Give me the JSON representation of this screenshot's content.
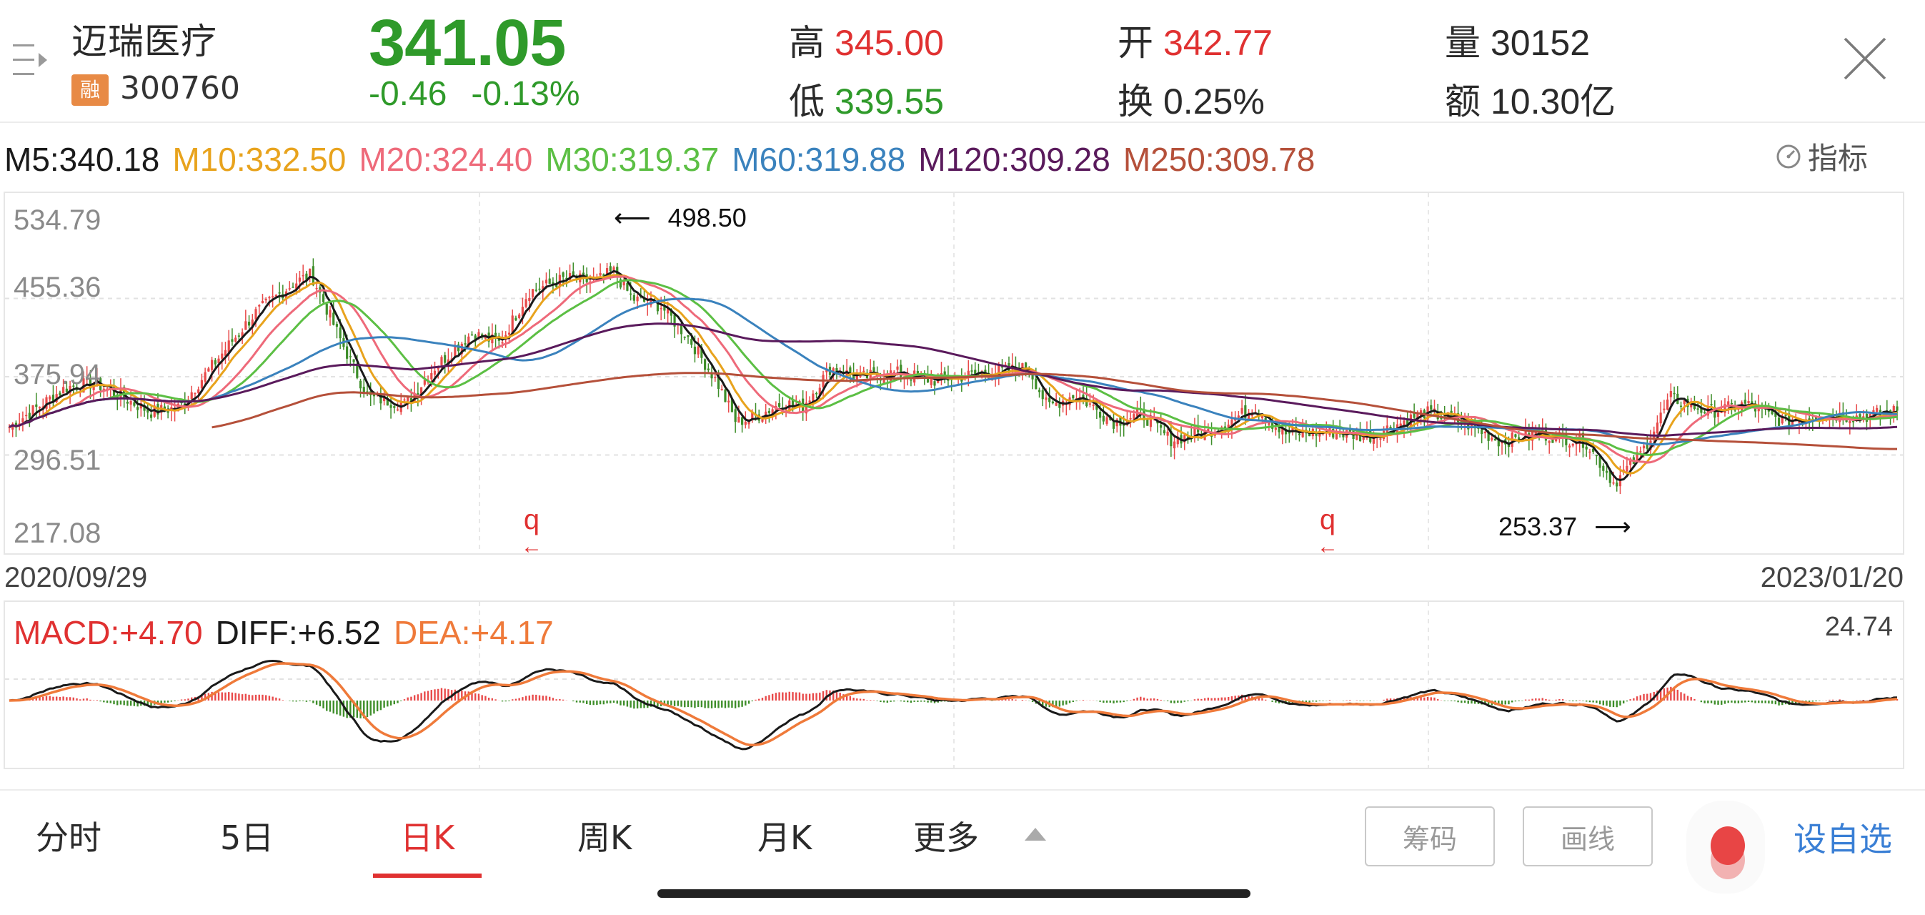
{
  "header": {
    "stock_name": "迈瑞医疗",
    "badge": "融",
    "stock_code": "300760",
    "price": "341.05",
    "change": "-0.46",
    "change_pct": "-0.13%",
    "stats": {
      "high_label": "高",
      "high": "345.00",
      "low_label": "低",
      "low": "339.55",
      "open_label": "开",
      "open": "342.77",
      "turnover_label": "换",
      "turnover": "0.25%",
      "volume_label": "量",
      "volume": "30152",
      "amount_label": "额",
      "amount": "10.30亿"
    },
    "menu_icon": "menu-list-icon",
    "close_icon": "close-icon"
  },
  "ma_legend": [
    {
      "label": "M5:340.18",
      "color": "#1a1a1a"
    },
    {
      "label": "M10:332.50",
      "color": "#e8a31d"
    },
    {
      "label": "M20:324.40",
      "color": "#ee6a7a"
    },
    {
      "label": "M30:319.37",
      "color": "#5cbf44"
    },
    {
      "label": "M60:319.88",
      "color": "#3a82bd"
    },
    {
      "label": "M120:309.28",
      "color": "#5a1a5c"
    },
    {
      "label": "M250:309.78",
      "color": "#b5503a"
    }
  ],
  "indicator_button": {
    "label": "指标",
    "icon": "gauge-icon"
  },
  "chart": {
    "y_labels": [
      "534.79",
      "455.36",
      "375.94",
      "296.51",
      "217.08"
    ],
    "high_annotation": "498.50",
    "low_annotation": "253.37",
    "q_marker": "q",
    "start_date": "2020/09/29",
    "end_date": "2023/01/20"
  },
  "macd": {
    "macd_label": "MACD:+4.70",
    "diff_label": "DIFF:+6.52",
    "dea_label": "DEA:+4.17",
    "max_label": "24.74",
    "colors": {
      "macd": "#e03131",
      "diff": "#1a1a1a",
      "dea": "#ef7a3a"
    }
  },
  "bottom_bar": {
    "tabs": [
      "分时",
      "5日",
      "日K",
      "周K",
      "月K",
      "更多"
    ],
    "active_tab": "日K",
    "chips_button": "筹码",
    "draw_button": "画线",
    "watchlist_button": "设自选"
  },
  "colors": {
    "up": "#e84a4a",
    "down": "#3e8e2a",
    "price_down": "#2f9a2a",
    "accent": "#e03131",
    "link": "#3a7fd5"
  },
  "chart_data": {
    "type": "candlestick",
    "title": "迈瑞医疗 300760 日K",
    "x_range": [
      "2020/09/29",
      "2023/01/20"
    ],
    "ylim": [
      217.08,
      534.79
    ],
    "y_ticks": [
      534.79,
      455.36,
      375.94,
      296.51,
      217.08
    ],
    "grid": true,
    "annotations": [
      {
        "text": "498.50",
        "type": "period-high"
      },
      {
        "text": "253.37",
        "type": "period-low"
      }
    ],
    "price_path_keypoints": [
      {
        "t": 0.0,
        "p": 325
      },
      {
        "t": 0.03,
        "p": 365
      },
      {
        "t": 0.045,
        "p": 370
      },
      {
        "t": 0.06,
        "p": 355
      },
      {
        "t": 0.075,
        "p": 340
      },
      {
        "t": 0.09,
        "p": 345
      },
      {
        "t": 0.115,
        "p": 405
      },
      {
        "t": 0.13,
        "p": 440
      },
      {
        "t": 0.15,
        "p": 470
      },
      {
        "t": 0.16,
        "p": 480
      },
      {
        "t": 0.175,
        "p": 415
      },
      {
        "t": 0.19,
        "p": 355
      },
      {
        "t": 0.21,
        "p": 348
      },
      {
        "t": 0.225,
        "p": 385
      },
      {
        "t": 0.245,
        "p": 420
      },
      {
        "t": 0.26,
        "p": 410
      },
      {
        "t": 0.275,
        "p": 462
      },
      {
        "t": 0.295,
        "p": 476
      },
      {
        "t": 0.31,
        "p": 472
      },
      {
        "t": 0.32,
        "p": 483
      },
      {
        "t": 0.33,
        "p": 455
      },
      {
        "t": 0.345,
        "p": 448
      },
      {
        "t": 0.36,
        "p": 415
      },
      {
        "t": 0.375,
        "p": 370
      },
      {
        "t": 0.385,
        "p": 330
      },
      {
        "t": 0.395,
        "p": 335
      },
      {
        "t": 0.41,
        "p": 350
      },
      {
        "t": 0.42,
        "p": 345
      },
      {
        "t": 0.435,
        "p": 385
      },
      {
        "t": 0.45,
        "p": 375
      },
      {
        "t": 0.47,
        "p": 380
      },
      {
        "t": 0.49,
        "p": 372
      },
      {
        "t": 0.51,
        "p": 378
      },
      {
        "t": 0.54,
        "p": 385
      },
      {
        "t": 0.55,
        "p": 345
      },
      {
        "t": 0.565,
        "p": 358
      },
      {
        "t": 0.585,
        "p": 330
      },
      {
        "t": 0.6,
        "p": 338
      },
      {
        "t": 0.615,
        "p": 312
      },
      {
        "t": 0.635,
        "p": 320
      },
      {
        "t": 0.66,
        "p": 345
      },
      {
        "t": 0.675,
        "p": 318
      },
      {
        "t": 0.7,
        "p": 320
      },
      {
        "t": 0.72,
        "p": 315
      },
      {
        "t": 0.75,
        "p": 340
      },
      {
        "t": 0.77,
        "p": 330
      },
      {
        "t": 0.79,
        "p": 310
      },
      {
        "t": 0.81,
        "p": 318
      },
      {
        "t": 0.835,
        "p": 310
      },
      {
        "t": 0.85,
        "p": 268
      },
      {
        "t": 0.865,
        "p": 300
      },
      {
        "t": 0.88,
        "p": 355
      },
      {
        "t": 0.9,
        "p": 340
      },
      {
        "t": 0.92,
        "p": 348
      },
      {
        "t": 0.94,
        "p": 330
      },
      {
        "t": 0.96,
        "p": 338
      },
      {
        "t": 0.98,
        "p": 335
      },
      {
        "t": 1.0,
        "p": 341
      }
    ],
    "series": [
      {
        "name": "M5",
        "last": 340.18
      },
      {
        "name": "M10",
        "last": 332.5
      },
      {
        "name": "M20",
        "last": 324.4
      },
      {
        "name": "M30",
        "last": 319.37
      },
      {
        "name": "M60",
        "last": 319.88
      },
      {
        "name": "M120",
        "last": 309.28
      },
      {
        "name": "M250",
        "last": 309.78
      }
    ],
    "subchart": {
      "type": "macd",
      "values": {
        "MACD": 4.7,
        "DIFF": 6.52,
        "DEA": 4.17
      },
      "max_label": 24.74
    }
  }
}
